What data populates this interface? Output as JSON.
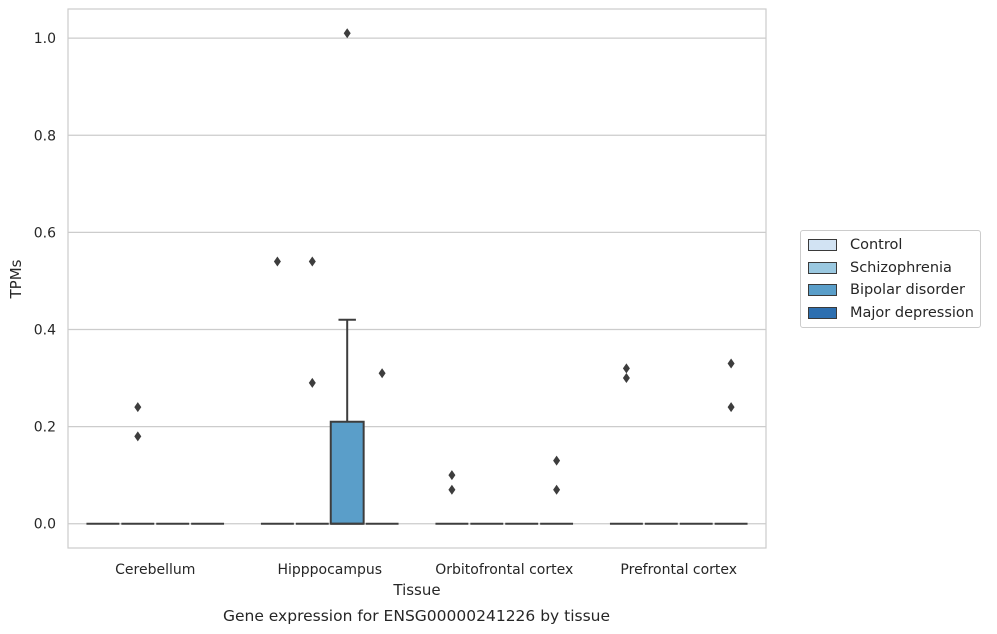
{
  "chart_data": {
    "type": "box",
    "title": "",
    "xlabel": "Tissue",
    "ylabel": "TPMs",
    "caption": "Gene expression for ENSG00000241226 by tissue",
    "ylim": [
      -0.05,
      1.06
    ],
    "yticks": [
      "0.0",
      "0.2",
      "0.4",
      "0.6",
      "0.8",
      "1.0"
    ],
    "ytick_values": [
      0,
      0.2,
      0.4,
      0.6,
      0.8,
      1.0
    ],
    "grid": true,
    "legend_position": "right",
    "categories": [
      "Cerebellum",
      "Hipppocampus",
      "Orbitofrontal cortex",
      "Prefrontal cortex"
    ],
    "series": [
      {
        "name": "Control",
        "color": "#d2e3f3",
        "boxes": [
          {
            "category": "Cerebellum",
            "q1": 0,
            "median": 0,
            "q3": 0,
            "whisker_low": 0,
            "whisker_high": 0,
            "outliers": []
          },
          {
            "category": "Hipppocampus",
            "q1": 0,
            "median": 0,
            "q3": 0,
            "whisker_low": 0,
            "whisker_high": 0,
            "outliers": [
              0.54
            ]
          },
          {
            "category": "Orbitofrontal cortex",
            "q1": 0,
            "median": 0,
            "q3": 0,
            "whisker_low": 0,
            "whisker_high": 0,
            "outliers": [
              0.1,
              0.07
            ]
          },
          {
            "category": "Prefrontal cortex",
            "q1": 0,
            "median": 0,
            "q3": 0,
            "whisker_low": 0,
            "whisker_high": 0,
            "outliers": [
              0.32,
              0.3
            ]
          }
        ]
      },
      {
        "name": "Schizophrenia",
        "color": "#9ac8e0",
        "boxes": [
          {
            "category": "Cerebellum",
            "q1": 0,
            "median": 0,
            "q3": 0,
            "whisker_low": 0,
            "whisker_high": 0,
            "outliers": [
              0.24,
              0.18
            ]
          },
          {
            "category": "Hipppocampus",
            "q1": 0,
            "median": 0,
            "q3": 0,
            "whisker_low": 0,
            "whisker_high": 0,
            "outliers": [
              0.29,
              0.54
            ]
          },
          {
            "category": "Orbitofrontal cortex",
            "q1": 0,
            "median": 0,
            "q3": 0,
            "whisker_low": 0,
            "whisker_high": 0,
            "outliers": []
          },
          {
            "category": "Prefrontal cortex",
            "q1": 0,
            "median": 0,
            "q3": 0,
            "whisker_low": 0,
            "whisker_high": 0,
            "outliers": []
          }
        ]
      },
      {
        "name": "Bipolar disorder",
        "color": "#5a9ec9",
        "boxes": [
          {
            "category": "Cerebellum",
            "q1": 0,
            "median": 0,
            "q3": 0,
            "whisker_low": 0,
            "whisker_high": 0,
            "outliers": []
          },
          {
            "category": "Hipppocampus",
            "q1": 0,
            "median": 0,
            "q3": 0.21,
            "whisker_low": 0,
            "whisker_high": 0.42,
            "outliers": [
              1.01
            ]
          },
          {
            "category": "Orbitofrontal cortex",
            "q1": 0,
            "median": 0,
            "q3": 0,
            "whisker_low": 0,
            "whisker_high": 0,
            "outliers": []
          },
          {
            "category": "Prefrontal cortex",
            "q1": 0,
            "median": 0,
            "q3": 0,
            "whisker_low": 0,
            "whisker_high": 0,
            "outliers": []
          }
        ]
      },
      {
        "name": "Major depression",
        "color": "#2d6fb0",
        "boxes": [
          {
            "category": "Cerebellum",
            "q1": 0,
            "median": 0,
            "q3": 0,
            "whisker_low": 0,
            "whisker_high": 0,
            "outliers": []
          },
          {
            "category": "Hipppocampus",
            "q1": 0,
            "median": 0,
            "q3": 0,
            "whisker_low": 0,
            "whisker_high": 0,
            "outliers": [
              0.31
            ]
          },
          {
            "category": "Orbitofrontal cortex",
            "q1": 0,
            "median": 0,
            "q3": 0,
            "whisker_low": 0,
            "whisker_high": 0,
            "outliers": [
              0.13,
              0.07
            ]
          },
          {
            "category": "Prefrontal cortex",
            "q1": 0,
            "median": 0,
            "q3": 0,
            "whisker_low": 0,
            "whisker_high": 0,
            "outliers": [
              0.33,
              0.24
            ]
          }
        ]
      }
    ]
  }
}
